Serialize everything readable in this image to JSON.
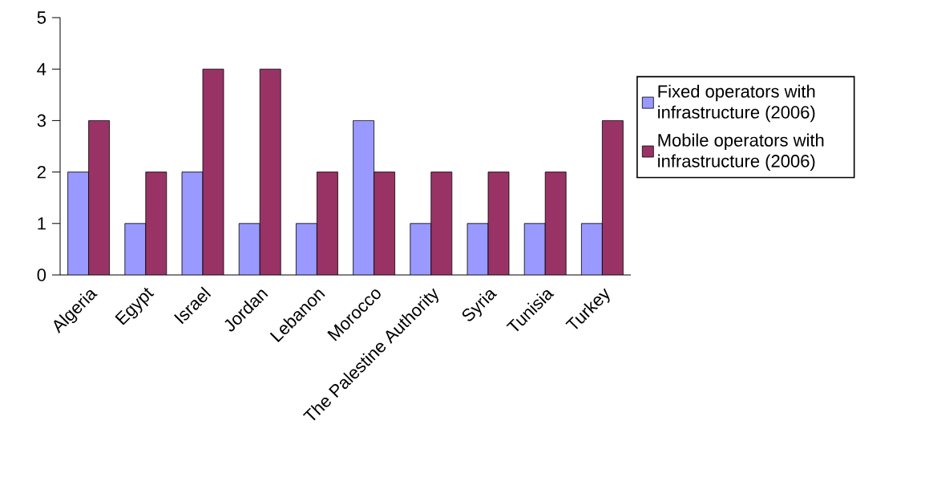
{
  "chart_data": {
    "type": "bar",
    "categories": [
      "Algeria",
      "Egypt",
      "Israel",
      "Jordan",
      "Lebanon",
      "Morocco",
      "The Palestine Authority",
      "Syria",
      "Tunisia",
      "Turkey"
    ],
    "series": [
      {
        "name": "Fixed operators with infrastructure (2006)",
        "color": "#9999ff",
        "values": [
          2,
          1,
          2,
          1,
          1,
          3,
          1,
          1,
          1,
          1
        ]
      },
      {
        "name": "Mobile operators with infrastructure (2006)",
        "color": "#993366",
        "values": [
          3,
          2,
          4,
          4,
          2,
          2,
          2,
          2,
          2,
          3
        ]
      }
    ],
    "ylim": [
      0,
      5
    ],
    "yticks": [
      0,
      1,
      2,
      3,
      4,
      5
    ],
    "grid": false,
    "legend": "right"
  }
}
